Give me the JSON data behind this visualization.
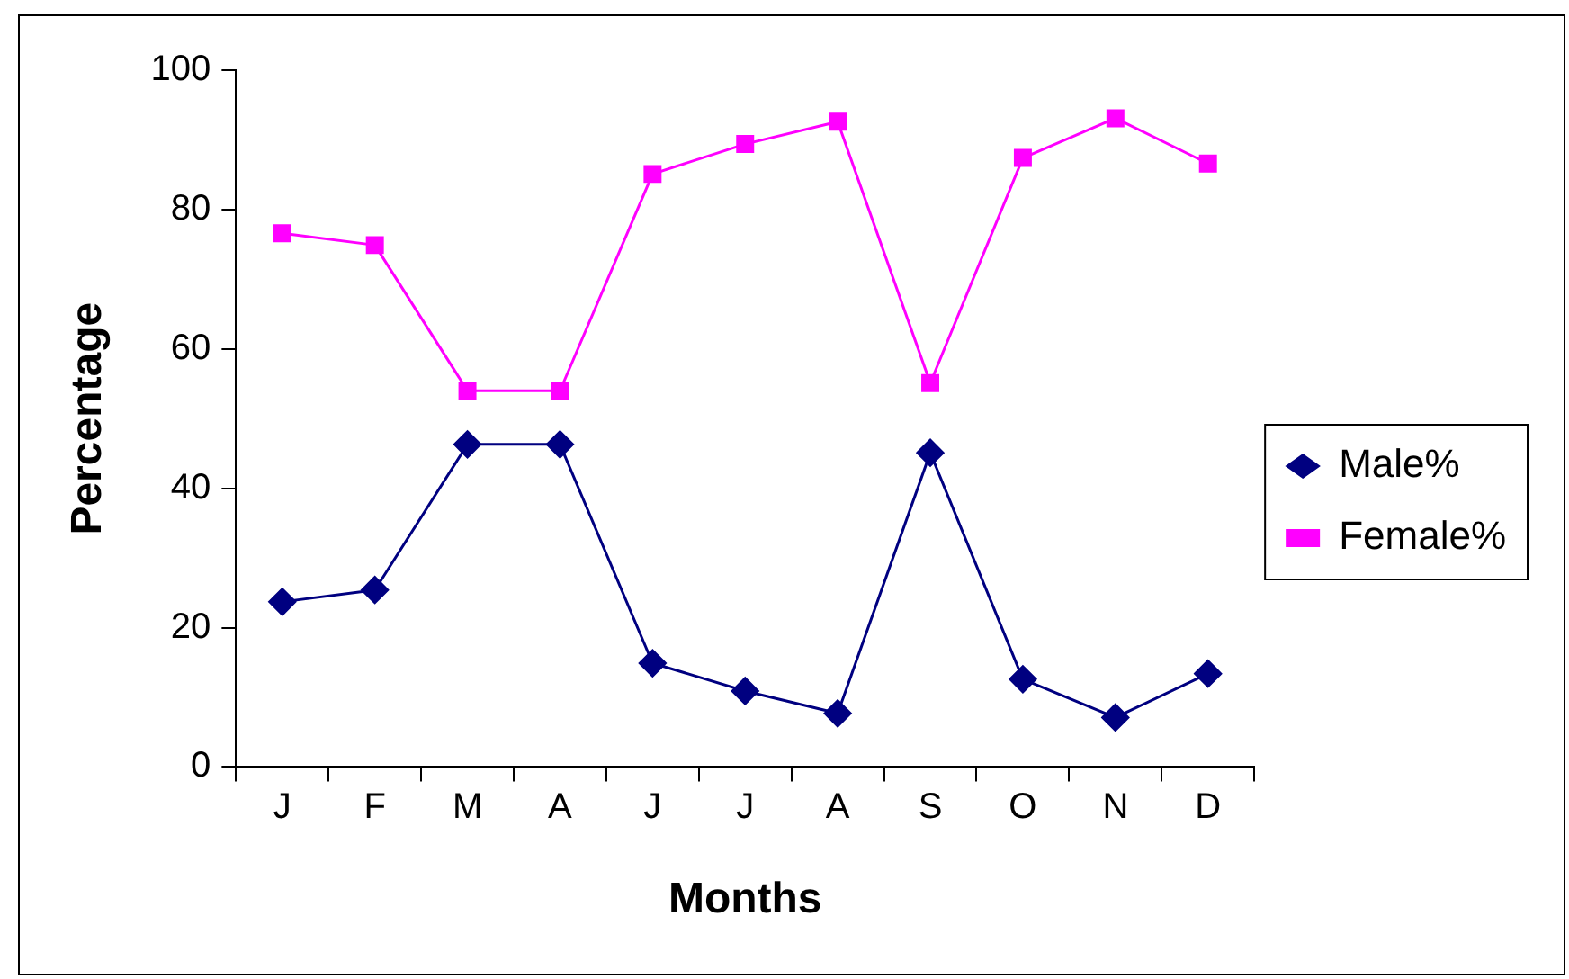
{
  "chart_data": {
    "type": "line",
    "xlabel": "Months",
    "ylabel": "Percentage",
    "categories": [
      "J",
      "F",
      "M",
      "A",
      "J",
      "J",
      "A",
      "S",
      "O",
      "N",
      "D"
    ],
    "series": [
      {
        "name": "Male%",
        "color": "#000080",
        "marker": "diamond",
        "values": [
          23.7,
          25.4,
          46.3,
          46.3,
          14.9,
          10.9,
          7.7,
          45.1,
          12.6,
          7.1,
          13.4
        ]
      },
      {
        "name": "Female%",
        "color": "#ff00ff",
        "marker": "square",
        "values": [
          76.6,
          74.9,
          54,
          54,
          85.1,
          89.4,
          92.6,
          55.1,
          87.4,
          93.1,
          86.6
        ]
      }
    ],
    "ylim": [
      0,
      100
    ],
    "yticks": [
      0,
      20,
      40,
      60,
      80,
      100
    ],
    "grid": false,
    "legend": "right",
    "line_style": "solid"
  }
}
